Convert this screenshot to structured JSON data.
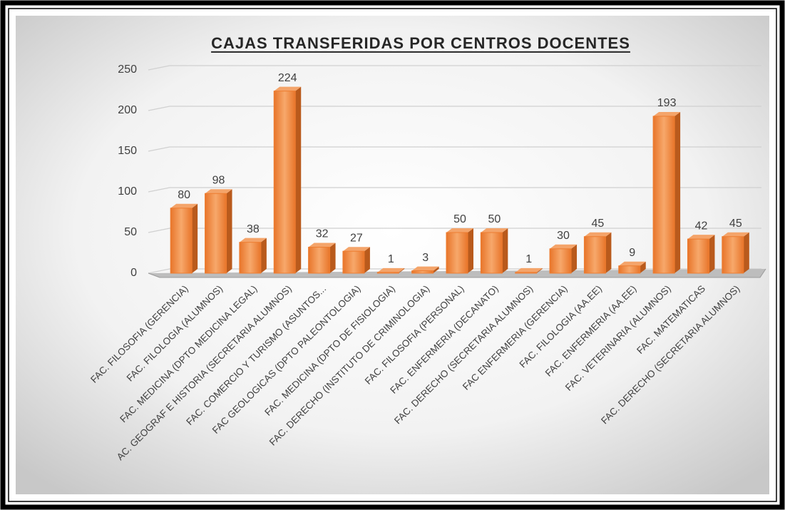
{
  "chart_data": {
    "type": "bar",
    "title": "CAJAS TRANSFERIDAS POR CENTROS DOCENTES",
    "categories": [
      "FAC. FILOSOFIA (GERENCIA)",
      "FAC. FILOLOGIA (ALUMNOS)",
      "FAC. MEDICINA (DPTO MEDICINA LEGAL)",
      "AC. GEOGRAF E HISTORIA (SECRETARIA ALUMNOS)",
      "FAC. COMERCIO Y TURISMO (ASUNTOS...",
      "FAC GEOLOGICAS (DPTO PALEONTOLOGIA)",
      "FAC. MEDICINA (DPTO DE FISIOLOGIA)",
      "FAC. DERECHO (INSTITUTO DE CRIMINOLOGIA)",
      "FAC. FILOSOFIA (PERSONAL)",
      "FAC. ENFERMERIA (DECANATO)",
      "FAC. DERECHO (SECRETARIA ALUMNOS)",
      "FAC ENFERMERIA (GERENCIA)",
      "FAC. FILOLOGIA (AA.EE)",
      "FAC. ENFERMERIA (AA.EE)",
      "FAC. VETERINARIA (ALUMNOS)",
      "FAC. MATEMATICAS",
      "FAC. DERECHO (SECRETARIA ALUMNOS)"
    ],
    "values": [
      80,
      98,
      38,
      224,
      32,
      27,
      1,
      3,
      50,
      50,
      1,
      30,
      45,
      9,
      193,
      42,
      45
    ],
    "color": "#ed7d31",
    "ylim": [
      0,
      250
    ],
    "yticks": [
      0,
      50,
      100,
      150,
      200,
      250
    ],
    "grid": true
  }
}
